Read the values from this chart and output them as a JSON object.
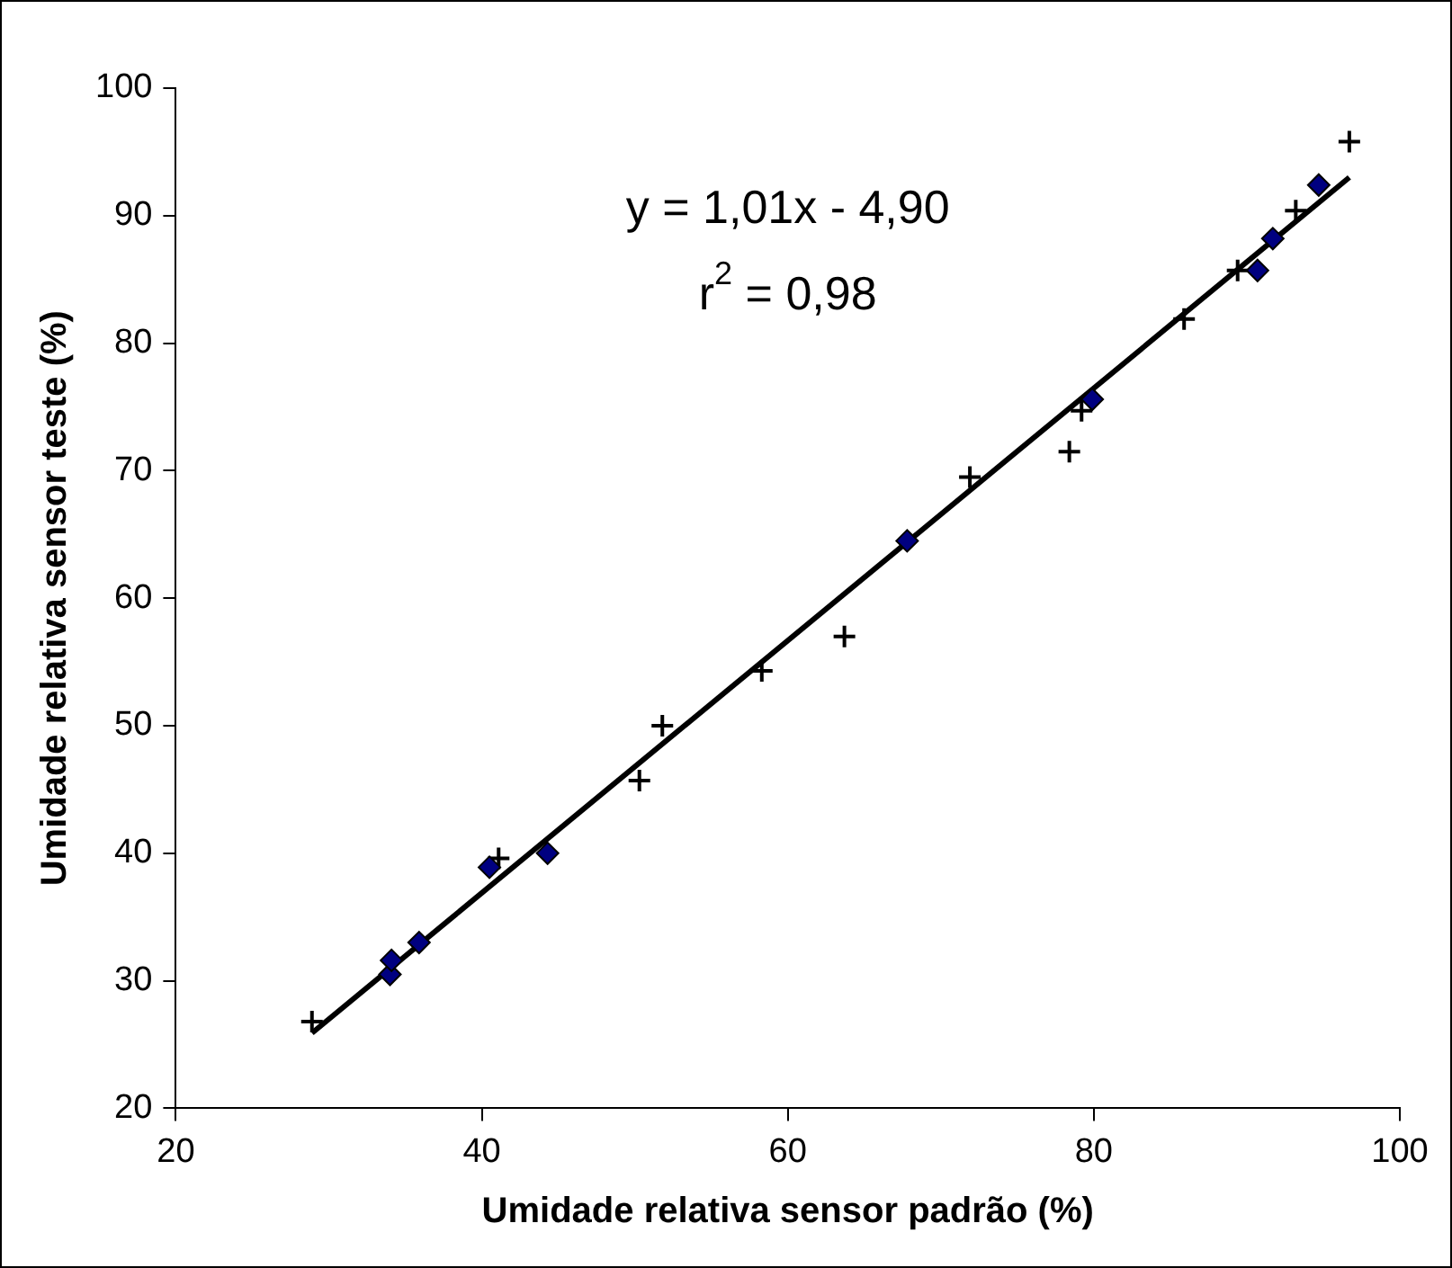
{
  "chart_data": {
    "type": "scatter",
    "xlabel": "Umidade relativa sensor padrão (%)",
    "ylabel": "Umidade relativa sensor teste (%)",
    "xlim": [
      20,
      100
    ],
    "xticks": [
      20,
      40,
      60,
      80,
      100
    ],
    "ylim": [
      20,
      100
    ],
    "yticks": [
      20,
      30,
      40,
      50,
      60,
      70,
      80,
      90,
      100
    ],
    "grid": false,
    "legend": false,
    "annotations": [
      "y = 1,01x - 4,90",
      "r$^{2}$ = 0,98"
    ],
    "series": [
      {
        "marker": "diamond",
        "color": "#000080",
        "x": [
          34.0,
          34.1,
          35.9,
          40.5,
          44.3,
          67.8,
          79.9,
          90.7,
          91.7,
          94.7
        ],
        "values": [
          30.5,
          31.6,
          33.0,
          38.9,
          40.0,
          64.5,
          75.6,
          85.7,
          88.2,
          92.4
        ]
      },
      {
        "marker": "cross",
        "color": "#000000",
        "x": [
          28.9,
          41.1,
          50.3,
          51.8,
          58.3,
          63.7,
          71.9,
          78.4,
          79.2,
          85.9,
          89.4,
          93.2,
          96.7
        ],
        "values": [
          26.8,
          39.6,
          45.7,
          50.0,
          54.3,
          57.0,
          69.5,
          71.5,
          74.7,
          81.9,
          85.7,
          90.4,
          95.8
        ]
      },
      {
        "type": "line",
        "marker": "none",
        "color": "#000000",
        "x": [
          28.9,
          96.7
        ],
        "values": [
          25.9,
          93.0
        ]
      }
    ]
  }
}
